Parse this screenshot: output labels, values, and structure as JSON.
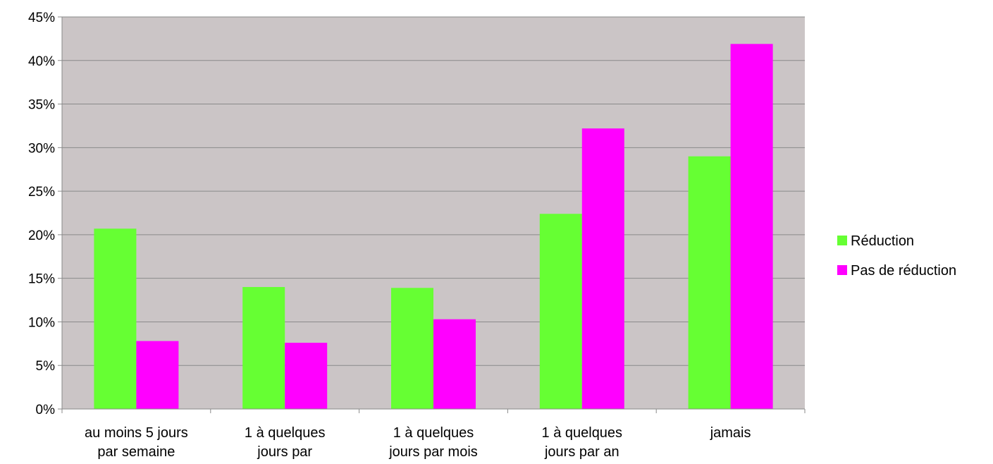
{
  "chart_data": {
    "type": "bar",
    "categories": [
      [
        "au moins 5 jours",
        "par semaine"
      ],
      [
        "1 à quelques",
        "jours par"
      ],
      [
        "1 à quelques",
        "jours par mois"
      ],
      [
        "1 à quelques",
        "jours par an"
      ],
      [
        "jamais"
      ]
    ],
    "series": [
      {
        "name": "Réduction",
        "color": "#66ff33",
        "values": [
          20.7,
          14.0,
          13.9,
          22.4,
          29.0
        ]
      },
      {
        "name": "Pas de réduction",
        "color": "#ff00ff",
        "values": [
          7.8,
          7.6,
          10.3,
          32.2,
          41.9
        ]
      }
    ],
    "ylim": [
      0,
      45
    ],
    "yticks": [
      "0%",
      "5%",
      "10%",
      "15%",
      "20%",
      "25%",
      "30%",
      "35%",
      "40%",
      "45%"
    ],
    "grid": true,
    "legend_position": "right",
    "plot_background": "#cbc5c6",
    "page_background": "#ffffff"
  }
}
